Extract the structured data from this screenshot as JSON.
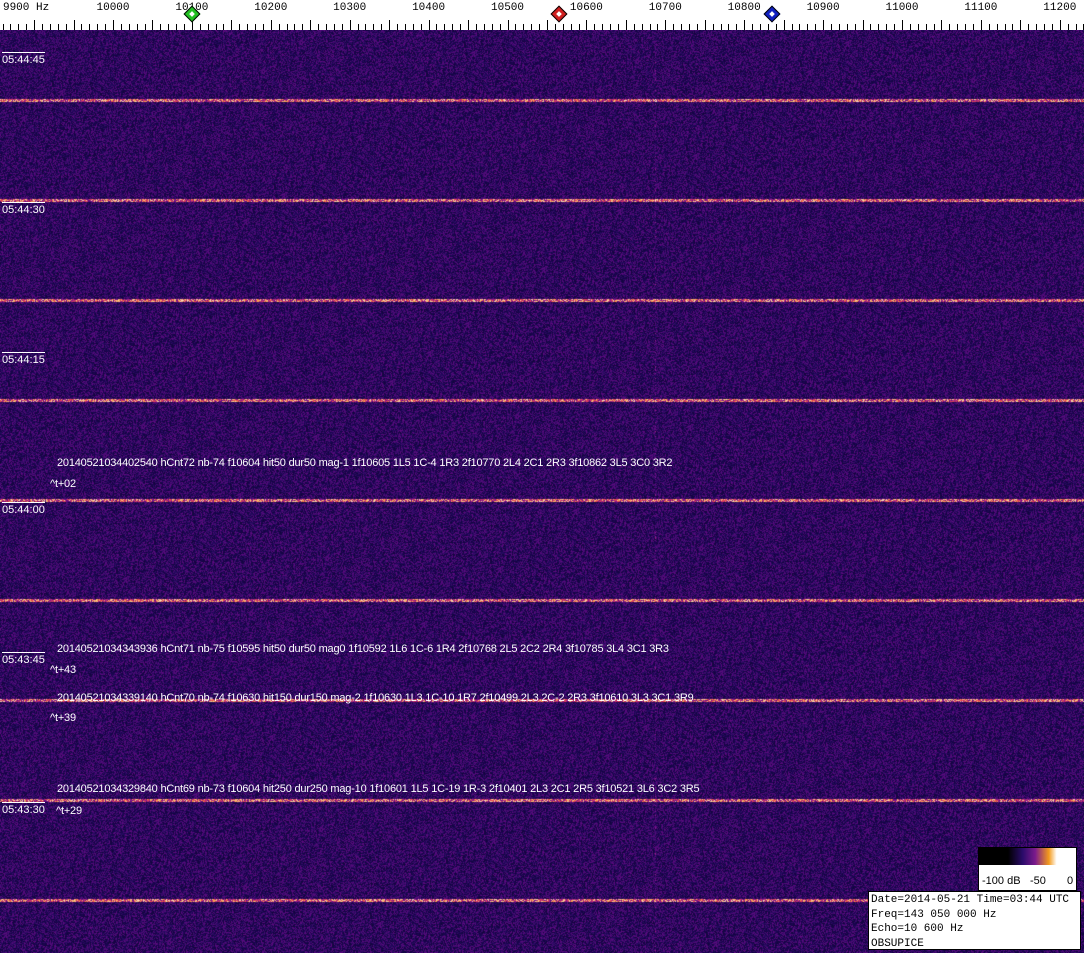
{
  "freq_axis": {
    "labels": [
      {
        "f": 9900,
        "text": "9900 Hz"
      },
      {
        "f": 10000,
        "text": "10000"
      },
      {
        "f": 10100,
        "text": "10100"
      },
      {
        "f": 10200,
        "text": "10200"
      },
      {
        "f": 10300,
        "text": "10300"
      },
      {
        "f": 10400,
        "text": "10400"
      },
      {
        "f": 10500,
        "text": "10500"
      },
      {
        "f": 10600,
        "text": "10600"
      },
      {
        "f": 10700,
        "text": "10700"
      },
      {
        "f": 10800,
        "text": "10800"
      },
      {
        "f": 10900,
        "text": "10900"
      },
      {
        "f": 11000,
        "text": "11000"
      },
      {
        "f": 11100,
        "text": "11100"
      },
      {
        "f": 11200,
        "text": "11200"
      }
    ],
    "markers": [
      {
        "name": "green-marker",
        "f": 10100,
        "color": "#22c022"
      },
      {
        "name": "red-marker",
        "f": 10565,
        "color": "#d02020"
      },
      {
        "name": "blue-marker",
        "f": 10835,
        "color": "#1020c0"
      }
    ]
  },
  "time_labels": [
    "05:44:45",
    "05:44:30",
    "05:44:15",
    "05:44:00",
    "05:43:45",
    "05:43:30"
  ],
  "annotations": [
    {
      "text": "20140521034402540 hCnt72 nb-74 f10604 hit50 dur50 mag-1 1f10605 1L5 1C-4 1R3 2f10770 2L4 2C1 2R3 3f10862 3L5 3C0 3R2",
      "offset": "^t+02"
    },
    {
      "text": "20140521034343936 hCnt71 nb-75 f10595 hit50 dur50 mag0 1f10592 1L6 1C-6 1R4 2f10768 2L5 2C2 2R4 3f10785 3L4 3C1 3R3",
      "offset": "^t+43"
    },
    {
      "text": "20140521034339140 hCnt70 nb-74 f10630 hit150 dur150 mag-2 1f10630 1L3 1C-10 1R7 2f10499 2L3 2C-2 2R3 3f10610 3L3 3C1 3R9",
      "offset": "^t+39"
    },
    {
      "text": "20140521034329840 hCnt69 nb-73 f10604 hit250 dur250 mag-10 1f10601 1L5 1C-19 1R-3 2f10401 2L3 2C1 2R5 3f10521 3L6 3C2 3R5",
      "offset": "^t+29"
    }
  ],
  "color_scale": {
    "min_label": "-100 dB",
    "mid_label": "-50",
    "max_label": "0"
  },
  "info": {
    "line1": "Date=2014-05-21 Time=03:44 UTC",
    "line2": "Freq=143 050 000 Hz",
    "line3": "Echo=10 600 Hz",
    "line4": "OBSUPICE"
  }
}
